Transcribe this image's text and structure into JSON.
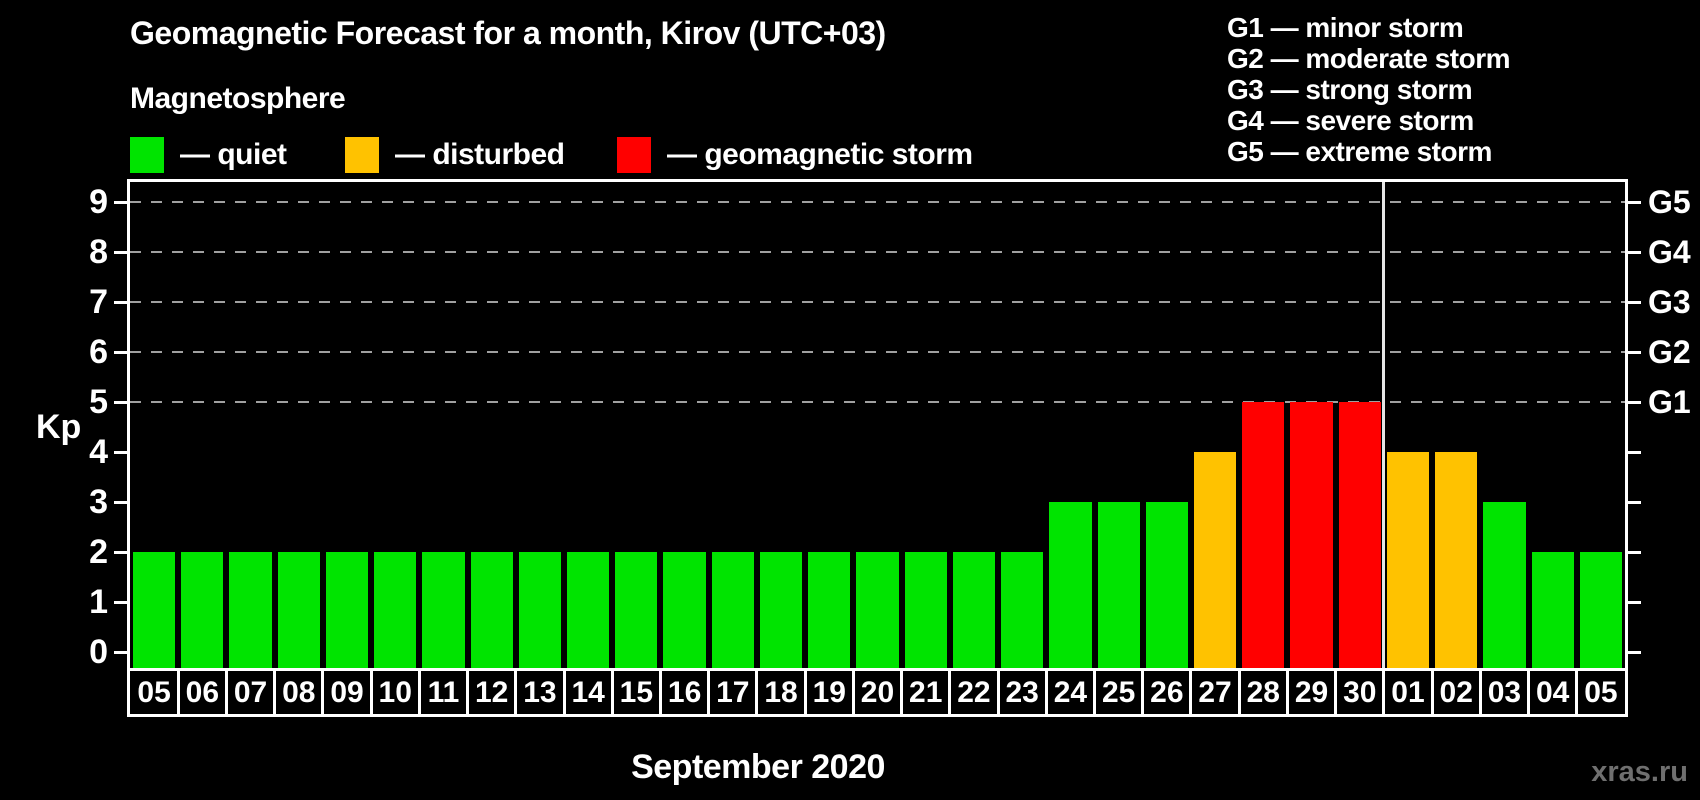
{
  "header": {
    "title": "Geomagnetic Forecast for a month, Kirov (UTC+03)"
  },
  "magnetosphere_legend": {
    "title": "Magnetosphere",
    "items": [
      {
        "name": "quiet",
        "label": "— quiet",
        "status": "quiet"
      },
      {
        "name": "disturbed",
        "label": "— disturbed",
        "status": "disturbed"
      },
      {
        "name": "storm",
        "label": "— geomagnetic storm",
        "status": "storm"
      }
    ]
  },
  "storm_scale_legend": {
    "items": [
      {
        "code": "G1",
        "label": "G1 — minor storm"
      },
      {
        "code": "G2",
        "label": "G2 — moderate storm"
      },
      {
        "code": "G3",
        "label": "G3 — strong storm"
      },
      {
        "code": "G4",
        "label": "G4 — severe storm"
      },
      {
        "code": "G5",
        "label": "G5 — extreme storm"
      }
    ]
  },
  "chart_data": {
    "type": "bar",
    "title": "Geomagnetic Forecast for a month, Kirov (UTC+03)",
    "ylabel": "Kp",
    "xlabel": "September 2020",
    "ylim": [
      0,
      9
    ],
    "yticks": [
      0,
      1,
      2,
      3,
      4,
      5,
      6,
      7,
      8,
      9
    ],
    "gridlines_at_kp": [
      5,
      6,
      7,
      8,
      9
    ],
    "grid": "dashed horizontal lines at storm levels G1–G5 (Kp 5–9)",
    "legend_position": "top",
    "right_axis": [
      {
        "kp": 5,
        "label": "G1"
      },
      {
        "kp": 6,
        "label": "G2"
      },
      {
        "kp": 7,
        "label": "G3"
      },
      {
        "kp": 8,
        "label": "G4"
      },
      {
        "kp": 9,
        "label": "G5"
      }
    ],
    "month_boundary_after_index": 25,
    "categories": [
      "05",
      "06",
      "07",
      "08",
      "09",
      "10",
      "11",
      "12",
      "13",
      "14",
      "15",
      "16",
      "17",
      "18",
      "19",
      "20",
      "21",
      "22",
      "23",
      "24",
      "25",
      "26",
      "27",
      "28",
      "29",
      "30",
      "01",
      "02",
      "03",
      "04",
      "05"
    ],
    "values": [
      2,
      2,
      2,
      2,
      2,
      2,
      2,
      2,
      2,
      2,
      2,
      2,
      2,
      2,
      2,
      2,
      2,
      2,
      2,
      3,
      3,
      3,
      4,
      5,
      5,
      5,
      4,
      4,
      3,
      2,
      2
    ],
    "statuses": [
      "quiet",
      "quiet",
      "quiet",
      "quiet",
      "quiet",
      "quiet",
      "quiet",
      "quiet",
      "quiet",
      "quiet",
      "quiet",
      "quiet",
      "quiet",
      "quiet",
      "quiet",
      "quiet",
      "quiet",
      "quiet",
      "quiet",
      "quiet",
      "quiet",
      "quiet",
      "disturbed",
      "storm",
      "storm",
      "storm",
      "disturbed",
      "disturbed",
      "quiet",
      "quiet",
      "quiet"
    ]
  },
  "footer": {
    "xaxis_title": "September 2020",
    "watermark": "xras.ru"
  },
  "colors": {
    "background": "#000000",
    "axis": "#ffffff",
    "gridline": "#a0a0a0",
    "quiet": "#00e400",
    "disturbed": "#ffc200",
    "storm": "#ff0000",
    "month_boundary": "#e6e6e6",
    "watermark": "#6f6f6f"
  }
}
